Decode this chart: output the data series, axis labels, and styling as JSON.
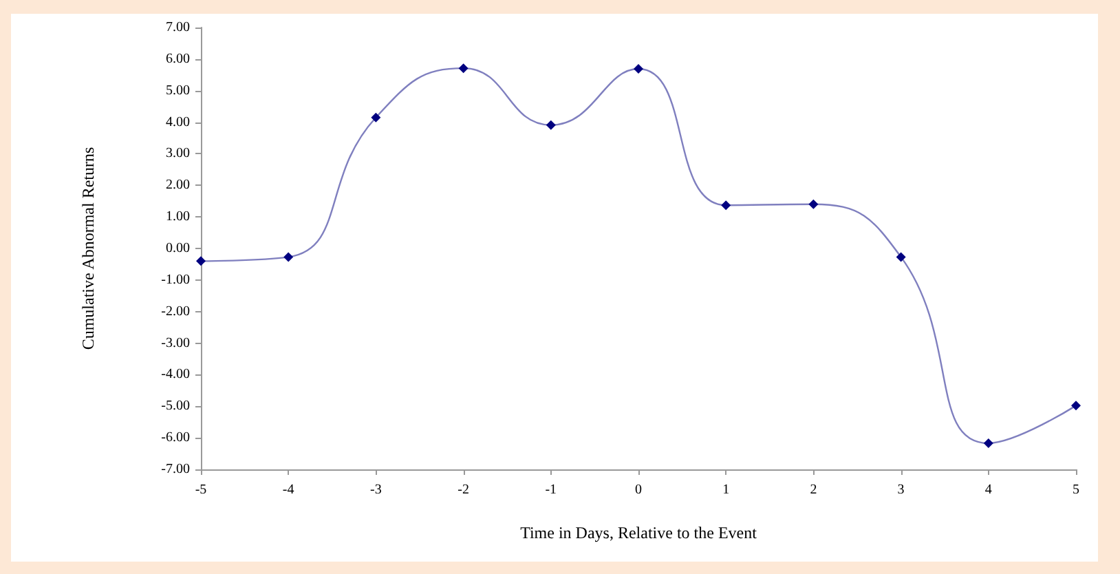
{
  "chart_data": {
    "type": "line",
    "xlabel": "Time in Days, Relative to the Event",
    "ylabel": "Cumulative Abnormal Returns",
    "x": [
      -5,
      -4,
      -3,
      -2,
      -1,
      0,
      1,
      2,
      3,
      4,
      5
    ],
    "series": [
      {
        "color": "#000080",
        "values": [
          -0.4,
          -0.27,
          4.15,
          5.71,
          3.91,
          5.69,
          1.37,
          1.4,
          -0.27,
          -6.17,
          -4.98
        ]
      }
    ],
    "xlim": [
      -5,
      5
    ],
    "xticks": [
      -5,
      -4,
      -3,
      -2,
      -1,
      0,
      1,
      2,
      3,
      4,
      5
    ],
    "ylim": [
      -7,
      7
    ],
    "yticks": [
      {
        "value": -7,
        "label": "-7.00"
      },
      {
        "value": -6,
        "label": "-6.00"
      },
      {
        "value": -5,
        "label": "-5.00"
      },
      {
        "value": -4,
        "label": "-4.00"
      },
      {
        "value": -3,
        "label": "-3.00"
      },
      {
        "value": -2,
        "label": "-2.00"
      },
      {
        "value": -1,
        "label": "-1.00"
      },
      {
        "value": 0,
        "label": "0.00"
      },
      {
        "value": 1,
        "label": "1.00"
      },
      {
        "value": 2,
        "label": "2.00"
      },
      {
        "value": 3,
        "label": "3.00"
      },
      {
        "value": 4,
        "label": "4.00"
      },
      {
        "value": 5,
        "label": "5.00"
      },
      {
        "value": 6,
        "label": "6.00"
      },
      {
        "value": 7,
        "label": "7.00"
      }
    ],
    "grid": false,
    "marker": "diamond",
    "line_style": "solid"
  }
}
